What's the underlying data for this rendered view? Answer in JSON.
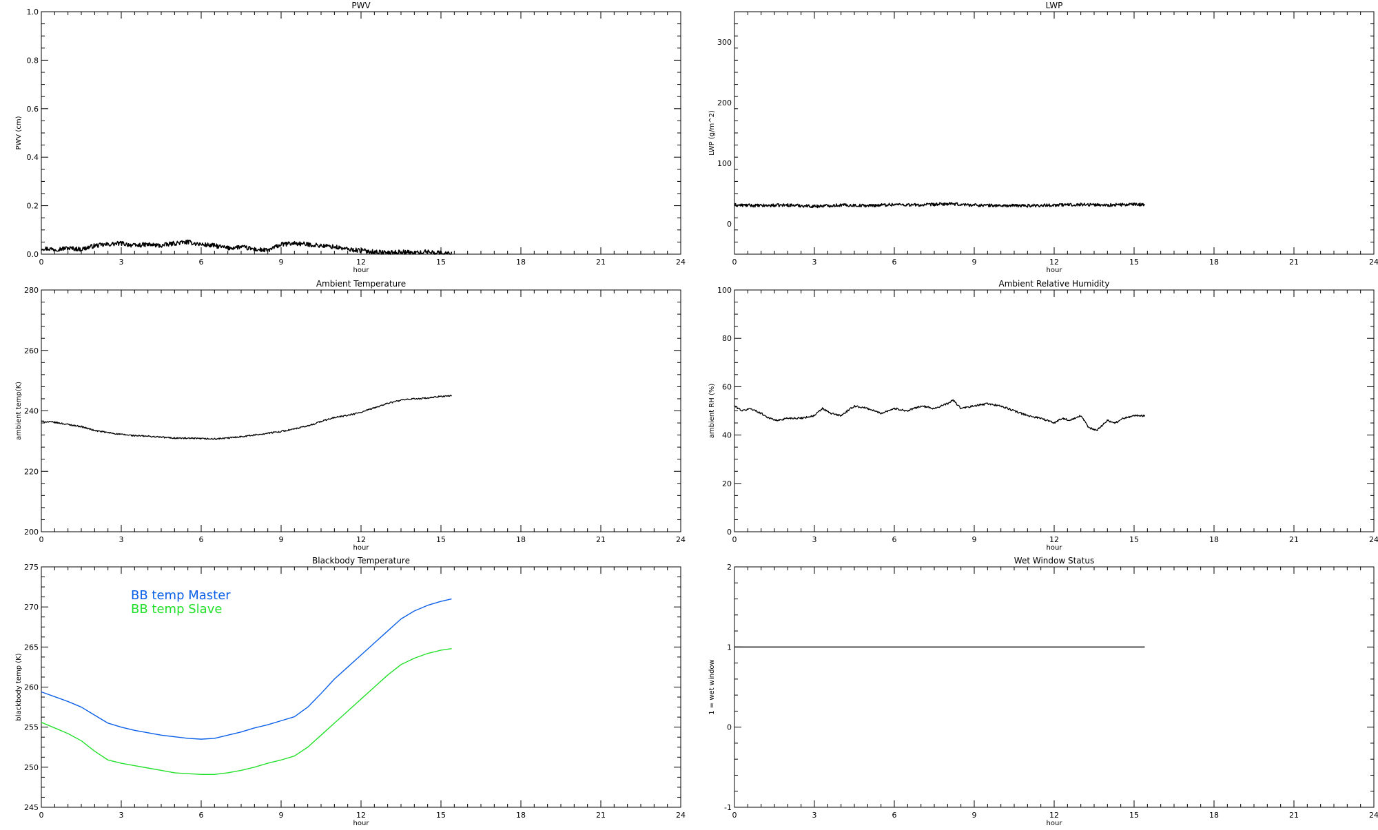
{
  "chart_data": [
    {
      "type": "line",
      "title": "PWV",
      "xlabel": "hour",
      "ylabel": "PWV (cm)",
      "xlim": [
        0,
        24
      ],
      "ylim": [
        0,
        1.0
      ],
      "xticks": [
        0,
        3,
        6,
        9,
        12,
        15,
        18,
        21,
        24
      ],
      "yticks": [
        0,
        0.2,
        0.4,
        0.6,
        0.8,
        1.0
      ],
      "ytick_labels": [
        "0.0",
        "0.2",
        "0.4",
        "0.6",
        "0.8",
        "1.0"
      ],
      "noise": 0.009,
      "stroke_width": 1.6,
      "series": [
        {
          "color": "#000000",
          "x": [
            0,
            0.5,
            1,
            1.5,
            2,
            2.5,
            3,
            3.5,
            4,
            4.5,
            5,
            5.5,
            6,
            6.5,
            7,
            7.5,
            8,
            8.5,
            9,
            9.5,
            10,
            10.5,
            11,
            11.5,
            12,
            12.5,
            13,
            13.5,
            14,
            14.5,
            15,
            15.4
          ],
          "values": [
            0.025,
            0.02,
            0.025,
            0.02,
            0.035,
            0.04,
            0.045,
            0.035,
            0.04,
            0.035,
            0.045,
            0.05,
            0.04,
            0.035,
            0.025,
            0.03,
            0.02,
            0.015,
            0.04,
            0.045,
            0.04,
            0.035,
            0.03,
            0.02,
            0.015,
            0.01,
            0.005,
            0.01,
            0.005,
            0.01,
            0.005,
            0.002
          ]
        }
      ]
    },
    {
      "type": "line",
      "title": "LWP",
      "xlabel": "hour",
      "ylabel": "LWP (g/m^2)",
      "xlim": [
        0,
        24
      ],
      "ylim": [
        -50,
        350
      ],
      "xticks": [
        0,
        3,
        6,
        9,
        12,
        15,
        18,
        21,
        24
      ],
      "yticks": [
        0,
        100,
        200,
        300
      ],
      "ytick_labels": [
        "0",
        "100",
        "200",
        "300"
      ],
      "noise": 2.5,
      "stroke_width": 1.6,
      "series": [
        {
          "color": "#000000",
          "x": [
            0,
            1,
            2,
            3,
            4,
            5,
            6,
            7,
            8,
            9,
            10,
            11,
            12,
            13,
            14,
            15,
            15.4
          ],
          "values": [
            31,
            30,
            31,
            29,
            31,
            30,
            32,
            31,
            33,
            31,
            30,
            30,
            31,
            32,
            31,
            32,
            32
          ]
        }
      ]
    },
    {
      "type": "line",
      "title": "Ambient Temperature",
      "xlabel": "hour",
      "ylabel": "ambient temp(K)",
      "xlim": [
        0,
        24
      ],
      "ylim": [
        200,
        280
      ],
      "xticks": [
        0,
        3,
        6,
        9,
        12,
        15,
        18,
        21,
        24
      ],
      "yticks": [
        200,
        220,
        240,
        260,
        280
      ],
      "ytick_labels": [
        "200",
        "220",
        "240",
        "260",
        "280"
      ],
      "noise": 0.25,
      "stroke_width": 1.3,
      "series": [
        {
          "color": "#000000",
          "x": [
            0,
            0.5,
            1,
            1.5,
            2,
            2.5,
            3,
            3.5,
            4,
            4.5,
            5,
            5.5,
            6,
            6.5,
            7,
            7.5,
            8,
            8.5,
            9,
            9.5,
            10,
            10.5,
            11,
            11.5,
            12,
            12.5,
            13,
            13.5,
            14,
            14.5,
            15,
            15.4
          ],
          "values": [
            236.5,
            236.2,
            235.5,
            234.8,
            233.5,
            232.8,
            232.2,
            231.8,
            231.6,
            231.3,
            231.0,
            230.9,
            230.8,
            230.7,
            231.0,
            231.5,
            232.0,
            232.6,
            233.2,
            234.0,
            235.0,
            236.5,
            237.8,
            238.5,
            239.5,
            241.0,
            242.5,
            243.5,
            244.0,
            244.2,
            244.8,
            245.0
          ]
        }
      ]
    },
    {
      "type": "line",
      "title": "Ambient Relative Humidity",
      "xlabel": "hour",
      "ylabel": "ambient RH (%)",
      "xlim": [
        0,
        24
      ],
      "ylim": [
        0,
        100
      ],
      "xticks": [
        0,
        3,
        6,
        9,
        12,
        15,
        18,
        21,
        24
      ],
      "yticks": [
        0,
        20,
        40,
        60,
        80,
        100
      ],
      "ytick_labels": [
        "0",
        "20",
        "40",
        "60",
        "80",
        "100"
      ],
      "noise": 0.4,
      "stroke_width": 1.3,
      "series": [
        {
          "color": "#000000",
          "x": [
            0,
            0.3,
            0.6,
            1,
            1.3,
            1.6,
            2,
            2.5,
            3,
            3.3,
            3.6,
            4,
            4.5,
            5,
            5.5,
            6,
            6.5,
            7,
            7.5,
            8,
            8.2,
            8.5,
            9,
            9.5,
            10,
            10.5,
            11,
            11.5,
            12,
            12.3,
            12.6,
            13,
            13.3,
            13.6,
            14,
            14.3,
            14.6,
            15,
            15.4
          ],
          "values": [
            52,
            50,
            51,
            49,
            47,
            46,
            47,
            47,
            48,
            51,
            49,
            48,
            52,
            51,
            49,
            51,
            50,
            52,
            51,
            53,
            54.5,
            51,
            52,
            53,
            52,
            50,
            48,
            47,
            45,
            47,
            46,
            48,
            43,
            42,
            46,
            45,
            47,
            48,
            48
          ]
        }
      ]
    },
    {
      "type": "line",
      "title": "Blackbody Temperature",
      "xlabel": "hour",
      "ylabel": "blackbody temp (K)",
      "xlim": [
        0,
        24
      ],
      "ylim": [
        245,
        275
      ],
      "xticks": [
        0,
        3,
        6,
        9,
        12,
        15,
        18,
        21,
        24
      ],
      "yticks": [
        245,
        250,
        255,
        260,
        265,
        270,
        275
      ],
      "ytick_labels": [
        "245",
        "250",
        "255",
        "260",
        "265",
        "270",
        "275"
      ],
      "noise": 0,
      "stroke_width": 1.4,
      "legend_position": "top-left",
      "series": [
        {
          "name": "BB temp Master",
          "color": "#0a5fe8",
          "x": [
            0,
            0.5,
            1,
            1.5,
            2,
            2.5,
            3,
            3.5,
            4,
            4.5,
            5,
            5.5,
            6,
            6.5,
            7,
            7.5,
            8,
            8.5,
            9,
            9.5,
            10,
            10.5,
            11,
            11.5,
            12,
            12.5,
            13,
            13.5,
            14,
            14.5,
            15,
            15.4
          ],
          "values": [
            259.4,
            258.8,
            258.2,
            257.5,
            256.5,
            255.5,
            255.0,
            254.6,
            254.3,
            254.0,
            253.8,
            253.6,
            253.5,
            253.6,
            254.0,
            254.4,
            254.9,
            255.3,
            255.8,
            256.3,
            257.5,
            259.2,
            261.0,
            262.5,
            264.0,
            265.5,
            267.0,
            268.5,
            269.5,
            270.2,
            270.7,
            271.0
          ]
        },
        {
          "name": "BB temp Slave",
          "color": "#22e02a",
          "x": [
            0,
            0.5,
            1,
            1.5,
            2,
            2.5,
            3,
            3.5,
            4,
            4.5,
            5,
            5.5,
            6,
            6.5,
            7,
            7.5,
            8,
            8.5,
            9,
            9.5,
            10,
            10.5,
            11,
            11.5,
            12,
            12.5,
            13,
            13.5,
            14,
            14.5,
            15,
            15.4
          ],
          "values": [
            255.6,
            254.9,
            254.2,
            253.3,
            252.0,
            250.9,
            250.5,
            250.2,
            249.9,
            249.6,
            249.3,
            249.2,
            249.1,
            249.1,
            249.3,
            249.6,
            250.0,
            250.5,
            250.9,
            251.4,
            252.5,
            254.0,
            255.5,
            257.0,
            258.5,
            260.0,
            261.5,
            262.8,
            263.6,
            264.2,
            264.6,
            264.8
          ]
        }
      ]
    },
    {
      "type": "line",
      "title": "Wet Window Status",
      "xlabel": "hour",
      "ylabel": "1 = wet window",
      "xlim": [
        0,
        24
      ],
      "ylim": [
        -1,
        2
      ],
      "xticks": [
        0,
        3,
        6,
        9,
        12,
        15,
        18,
        21,
        24
      ],
      "yticks": [
        -1,
        0,
        1,
        2
      ],
      "ytick_labels": [
        "-1",
        "0",
        "1",
        "2"
      ],
      "noise": 0,
      "stroke_width": 1.4,
      "series": [
        {
          "color": "#000000",
          "x": [
            0,
            15.4
          ],
          "values": [
            1,
            1
          ]
        }
      ]
    }
  ]
}
